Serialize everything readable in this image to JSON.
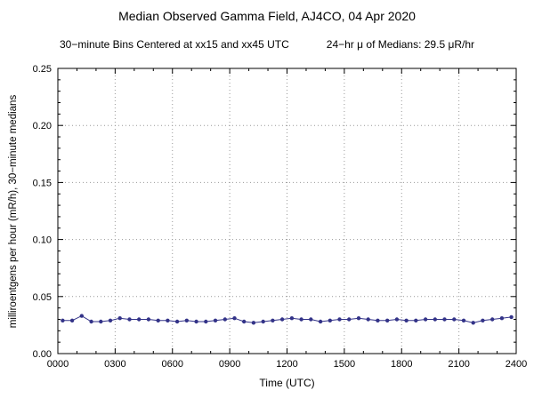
{
  "chart_data": {
    "type": "line",
    "title": "Median Observed Gamma Field, AJ4CO, 04 Apr 2020",
    "subtitle_left": "30−minute Bins Centered at xx15 and xx45 UTC",
    "subtitle_right": "24−hr μ of Medians: 29.5 μR/hr",
    "xlabel": "Time (UTC)",
    "ylabel": "milliroentgens per hour (mR/h), 30−minute medians",
    "xlim": [
      0,
      1440
    ],
    "ylim": [
      0,
      0.25
    ],
    "x_major_ticks": [
      0,
      180,
      360,
      540,
      720,
      900,
      1080,
      1260,
      1440
    ],
    "x_tick_labels": [
      "0000",
      "0300",
      "0600",
      "0900",
      "1200",
      "1500",
      "1800",
      "2100",
      "2400"
    ],
    "x_minor_step": 60,
    "y_major_ticks": [
      0,
      0.05,
      0.1,
      0.15,
      0.2,
      0.25
    ],
    "y_tick_labels": [
      "0.00",
      "0.05",
      "0.10",
      "0.15",
      "0.20",
      "0.25"
    ],
    "y_minor_step": 0.01,
    "grid": true,
    "grid_color": "#999999",
    "marker_color": "#333388",
    "line_color": "#333388",
    "x_minutes": [
      15,
      45,
      75,
      105,
      135,
      165,
      195,
      225,
      255,
      285,
      315,
      345,
      375,
      405,
      435,
      465,
      495,
      525,
      555,
      585,
      615,
      645,
      675,
      705,
      735,
      765,
      795,
      825,
      855,
      885,
      915,
      945,
      975,
      1005,
      1035,
      1065,
      1095,
      1125,
      1155,
      1185,
      1215,
      1245,
      1275,
      1305,
      1335,
      1365,
      1395,
      1425
    ],
    "values": [
      0.029,
      0.029,
      0.033,
      0.028,
      0.028,
      0.029,
      0.031,
      0.03,
      0.03,
      0.03,
      0.029,
      0.029,
      0.028,
      0.029,
      0.028,
      0.028,
      0.029,
      0.03,
      0.031,
      0.028,
      0.027,
      0.028,
      0.029,
      0.03,
      0.031,
      0.03,
      0.03,
      0.028,
      0.029,
      0.03,
      0.03,
      0.031,
      0.03,
      0.029,
      0.029,
      0.03,
      0.029,
      0.029,
      0.03,
      0.03,
      0.03,
      0.03,
      0.029,
      0.027,
      0.029,
      0.03,
      0.031,
      0.032
    ]
  }
}
